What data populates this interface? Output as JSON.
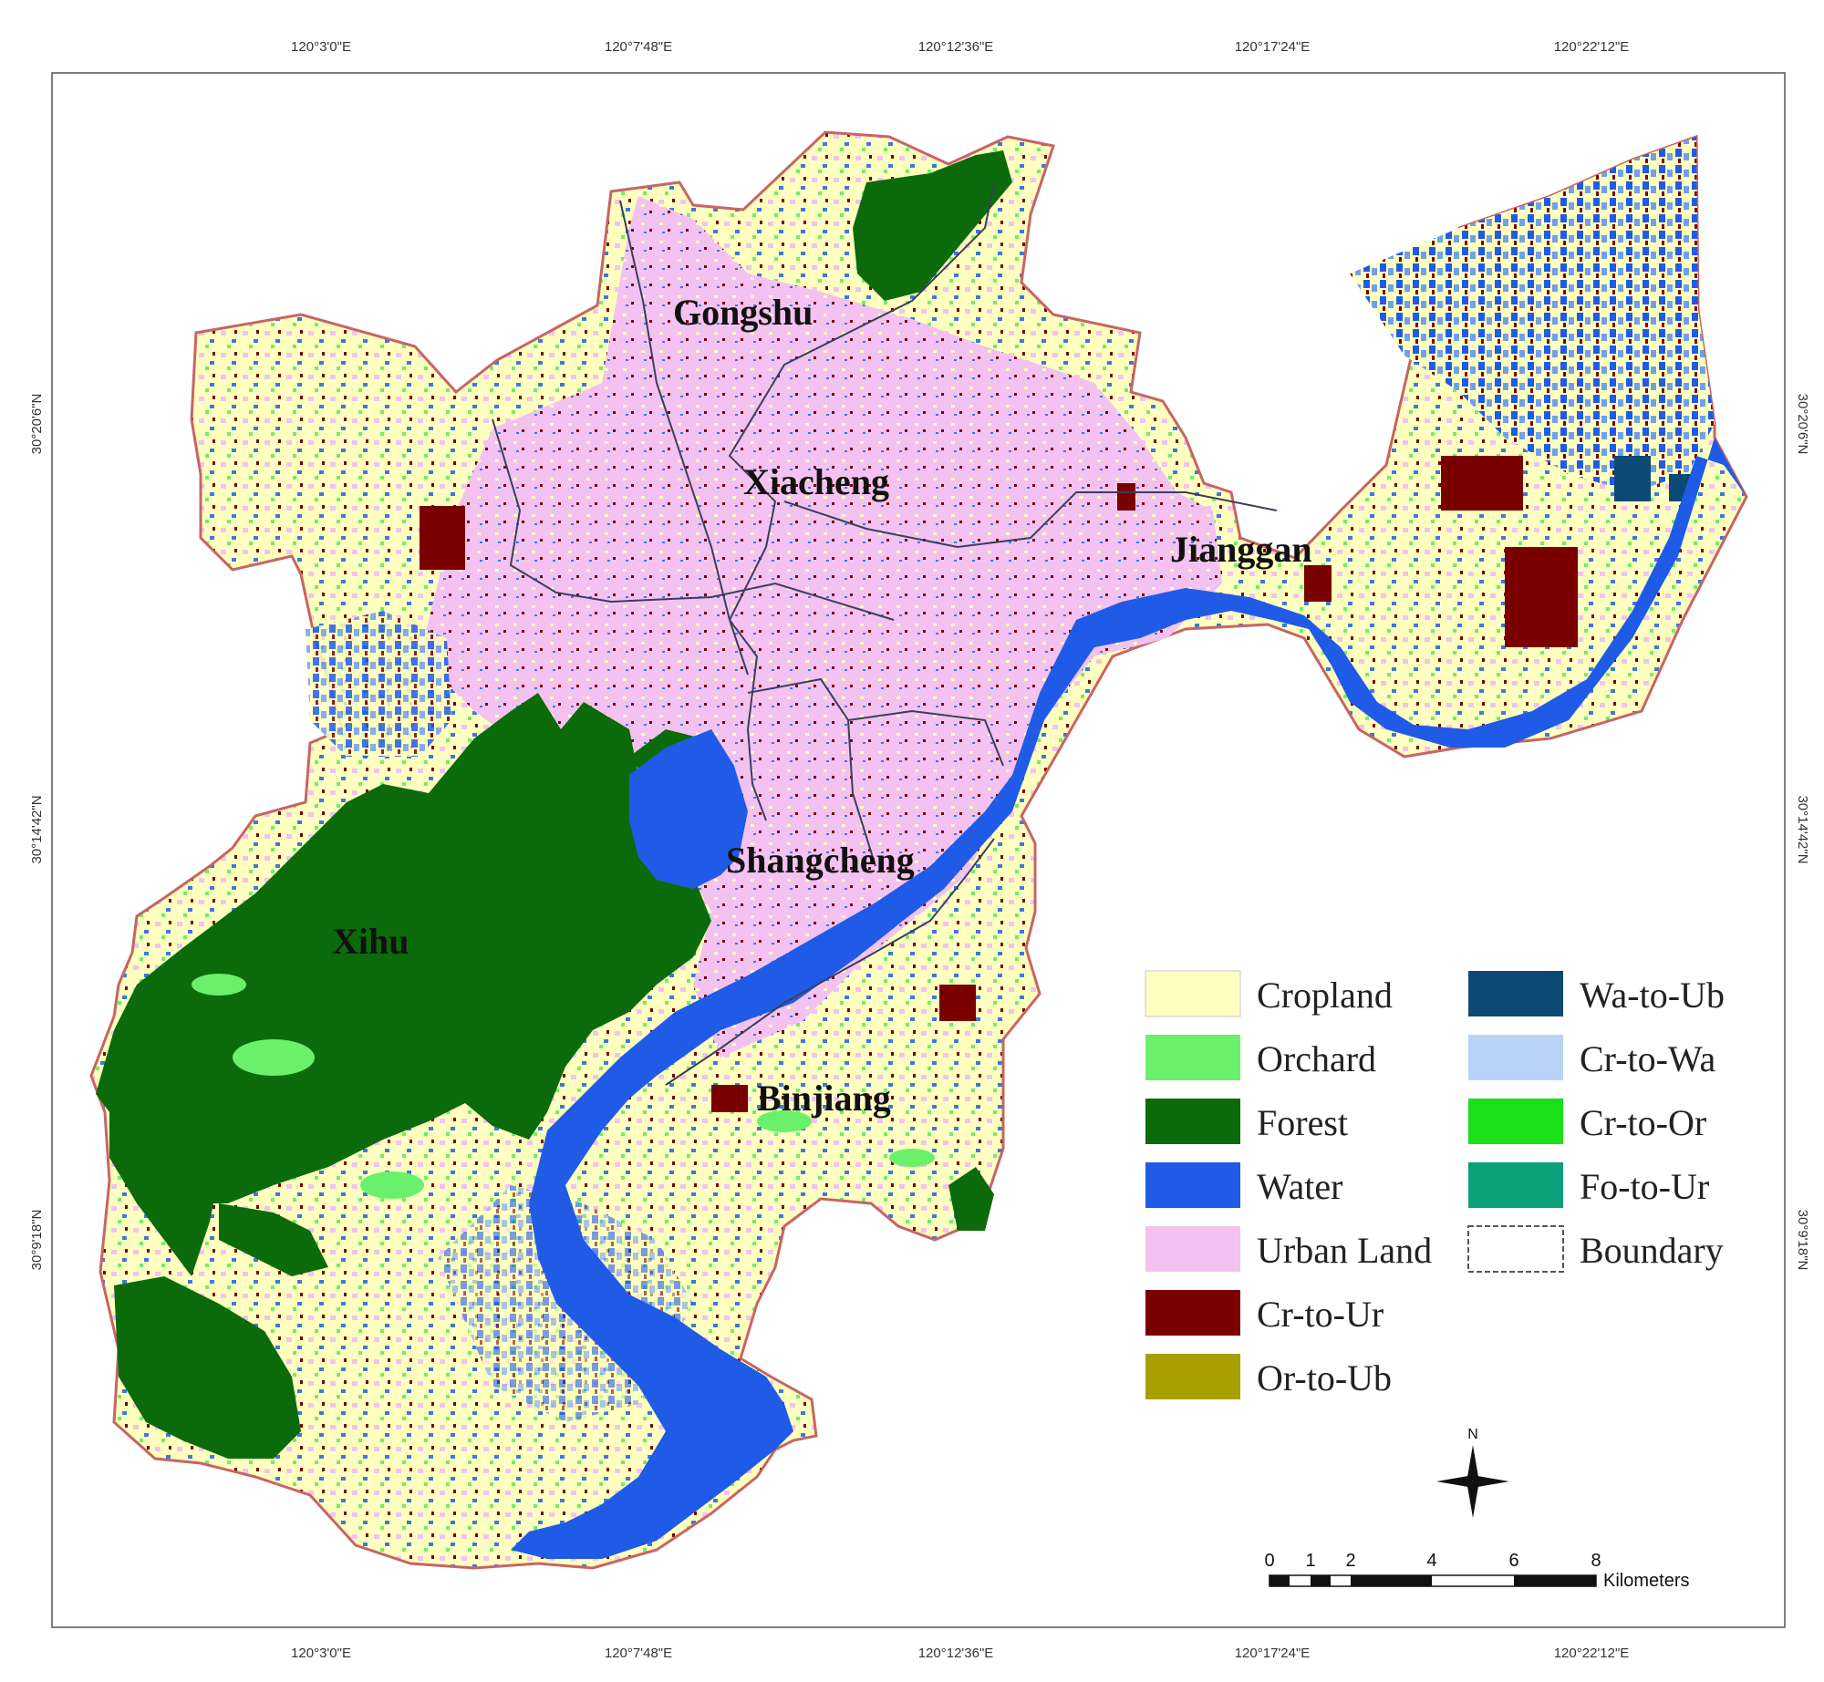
{
  "top_lon_labels": [
    "120°3'0\"E",
    "120°7'48\"E",
    "120°12'36\"E",
    "120°17'24\"E",
    "120°22'12\"E"
  ],
  "bottom_lon_labels": [
    "120°3'0\"E",
    "120°7'48\"E",
    "120°12'36\"E",
    "120°17'24\"E",
    "120°22'12\"E"
  ],
  "left_lat_labels": [
    "30°20'6\"N",
    "30°14'42\"N",
    "30°9'18\"N"
  ],
  "right_lat_labels": [
    "30°20'6\"N",
    "30°14'42\"N",
    "30°9'18\"N"
  ],
  "districts": {
    "gongshu": "Gongshu",
    "xiacheng": "Xiacheng",
    "jianggan": "Jianggan",
    "shangcheng": "Shangcheng",
    "xihu": "Xihu",
    "binjiang": "Binjiang"
  },
  "legend": [
    {
      "label": "Cropland",
      "color": "#ffffc0"
    },
    {
      "label": "Orchard",
      "color": "#6bf06b"
    },
    {
      "label": "Forest",
      "color": "#0b6b0b"
    },
    {
      "label": "Water",
      "color": "#1f5be6"
    },
    {
      "label": "Urban Land",
      "color": "#f3c2f0"
    },
    {
      "label": "Cr-to-Ur",
      "color": "#7a0000"
    },
    {
      "label": "Or-to-Ub",
      "color": "#a8a000"
    },
    {
      "label": "Wa-to-Ub",
      "color": "#0d4a73"
    },
    {
      "label": "Cr-to-Wa",
      "color": "#b9d3f7"
    },
    {
      "label": "Cr-to-Or",
      "color": "#19e019"
    },
    {
      "label": "Fo-to-Ur",
      "color": "#0aa07a"
    },
    {
      "label": "Boundary",
      "color": "#ffffff"
    }
  ],
  "north_arrow": {
    "label": "N",
    "icon": "north-arrow-icon"
  },
  "scale_bar": {
    "ticks": [
      "0",
      "1",
      "2",
      "4",
      "6",
      "8"
    ],
    "unit": "Kilometers"
  }
}
